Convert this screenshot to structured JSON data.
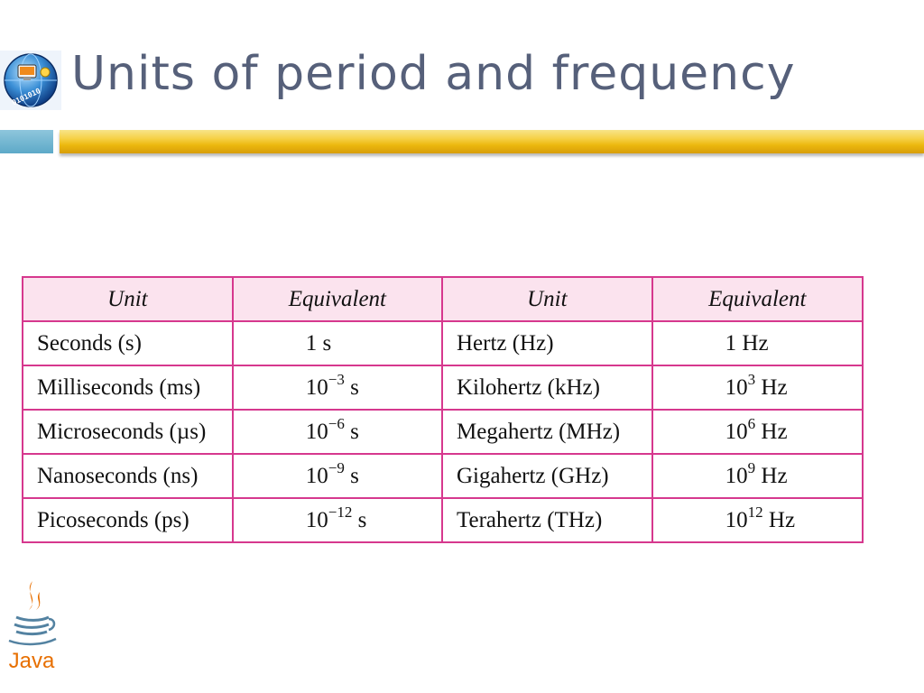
{
  "slide": {
    "title": "Units of period and frequency"
  },
  "logo": {
    "icon_name": "globe-computer-icon",
    "binary_text": "0101010"
  },
  "table": {
    "headers": [
      "Unit",
      "Equivalent",
      "Unit",
      "Equivalent"
    ],
    "rows": [
      {
        "period_unit": "Seconds (s)",
        "period_base": "1 s",
        "period_exp": "",
        "period_suffix": "",
        "freq_unit": "Hertz (Hz)",
        "freq_base": "1 Hz",
        "freq_exp": "",
        "freq_suffix": ""
      },
      {
        "period_unit": "Milliseconds (ms)",
        "period_base": "10",
        "period_exp": "−3",
        "period_suffix": " s",
        "freq_unit": "Kilohertz (kHz)",
        "freq_base": "10",
        "freq_exp": "3",
        "freq_suffix": " Hz"
      },
      {
        "period_unit": "Microseconds (µs)",
        "period_base": "10",
        "period_exp": "−6",
        "period_suffix": " s",
        "freq_unit": "Megahertz (MHz)",
        "freq_base": "10",
        "freq_exp": "6",
        "freq_suffix": " Hz"
      },
      {
        "period_unit": "Nanoseconds (ns)",
        "period_base": "10",
        "period_exp": "−9",
        "period_suffix": " s",
        "freq_unit": "Gigahertz (GHz)",
        "freq_base": "10",
        "freq_exp": "9",
        "freq_suffix": " Hz"
      },
      {
        "period_unit": "Picoseconds (ps)",
        "period_base": "10",
        "period_exp": "−12",
        "period_suffix": " s",
        "freq_unit": "Terahertz (THz)",
        "freq_base": "10",
        "freq_exp": "12",
        "freq_suffix": " Hz"
      }
    ]
  },
  "java_logo": {
    "text": "Java",
    "icon_name": "java-coffee-cup-icon"
  },
  "colors": {
    "title": "#56607a",
    "accent_blue": "#6fb5d2",
    "gold_bar": "#f0c21c",
    "table_border": "#d6388e",
    "table_header_bg": "#fbe3ee",
    "java_blue": "#5382a1",
    "java_red": "#e76f00"
  }
}
